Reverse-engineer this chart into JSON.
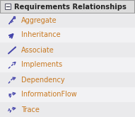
{
  "title": "Requirements Relationships",
  "background_body": "#f2f2f4",
  "header_bg": "#e0e0e0",
  "border_color": "#999999",
  "text_color": "#c87820",
  "icon_color": "#4444aa",
  "items": [
    {
      "label": "Aggregate",
      "icon": "aggregate"
    },
    {
      "label": "Inheritance",
      "icon": "inheritance"
    },
    {
      "label": "Associate",
      "icon": "associate"
    },
    {
      "label": "Implements",
      "icon": "implements"
    },
    {
      "label": "Dependency",
      "icon": "dependency"
    },
    {
      "label": "InformationFlow",
      "icon": "informationflow"
    },
    {
      "label": "Trace",
      "icon": "trace"
    }
  ],
  "figsize": [
    1.91,
    1.65
  ],
  "dpi": 100
}
